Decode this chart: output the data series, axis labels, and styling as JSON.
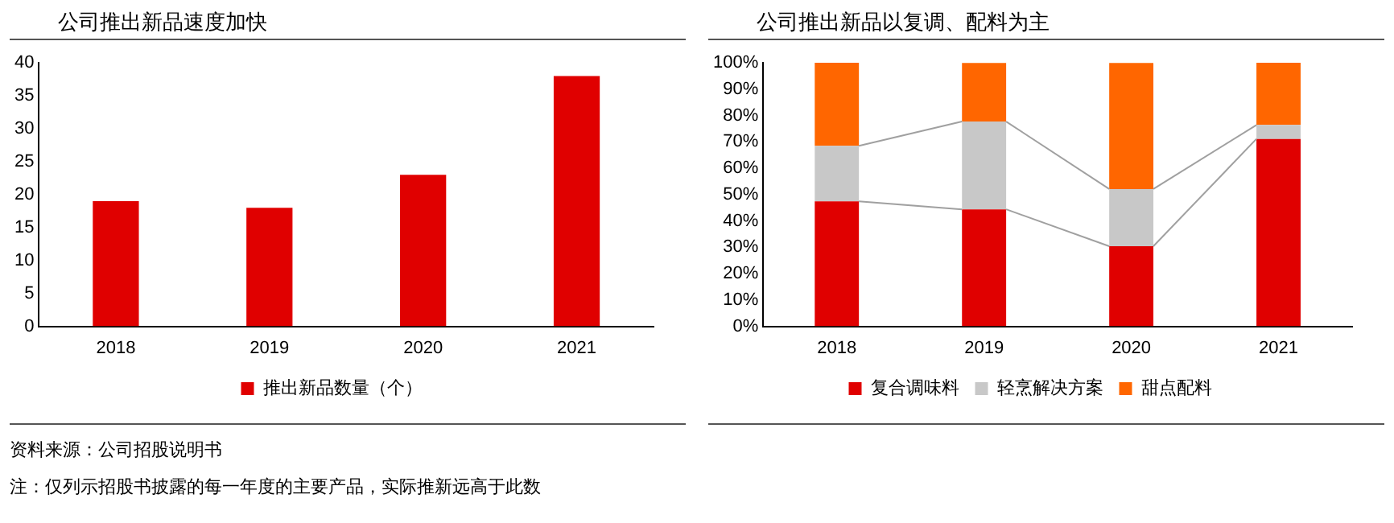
{
  "chart_data": [
    {
      "type": "bar",
      "title": "公司推出新品速度加快",
      "categories": [
        "2018",
        "2019",
        "2020",
        "2021"
      ],
      "series": [
        {
          "name": "推出新品数量（个）",
          "color": "#e00000",
          "values": [
            19,
            18,
            23,
            38
          ]
        }
      ],
      "ylim": [
        0,
        40
      ],
      "yticks": [
        0,
        5,
        10,
        15,
        20,
        25,
        30,
        35,
        40
      ],
      "grid": false,
      "legend": "bottom",
      "annotations": [
        "资料来源：公司招股说明书",
        "注：仅列示招股书披露的每一年度的主要产品，实际推新远高于此数"
      ]
    },
    {
      "type": "bar",
      "title": "公司推出新品以复调、配料为主",
      "categories": [
        "2018",
        "2019",
        "2020",
        "2021"
      ],
      "stacked": true,
      "series": [
        {
          "name": "复合调味料",
          "color": "#e00000",
          "values": [
            47.4,
            44.4,
            30.4,
            71.1
          ]
        },
        {
          "name": "轻烹解决方案",
          "color": "#c8c8c8",
          "values": [
            21.1,
            33.3,
            21.7,
            5.3
          ]
        },
        {
          "name": "甜点配料",
          "color": "#ff6600",
          "values": [
            31.6,
            22.2,
            47.8,
            23.7
          ]
        }
      ],
      "ylim": [
        0,
        100
      ],
      "yticks": [
        {
          "value": 0,
          "label": "0%"
        },
        {
          "value": 10,
          "label": "10%"
        },
        {
          "value": 20,
          "label": "20%"
        },
        {
          "value": 30,
          "label": "30%"
        },
        {
          "value": 40,
          "label": "40%"
        },
        {
          "value": 50,
          "label": "50%"
        },
        {
          "value": 60,
          "label": "60%"
        },
        {
          "value": 70,
          "label": "70%"
        },
        {
          "value": 80,
          "label": "80%"
        },
        {
          "value": 90,
          "label": "90%"
        },
        {
          "value": 100,
          "label": "100%"
        }
      ],
      "grid": false,
      "legend": "bottom"
    }
  ]
}
